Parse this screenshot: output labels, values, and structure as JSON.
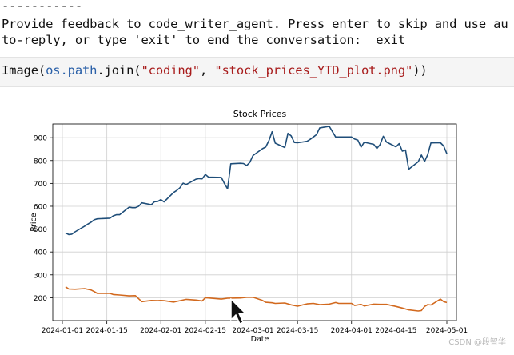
{
  "output": {
    "separator": "-----------",
    "prompt_line1": "Provide feedback to code_writer_agent. Press enter to skip and use au",
    "prompt_line2": "to-reply, or type 'exit' to end the conversation:  exit"
  },
  "cell": {
    "code_prefix": "Image(",
    "code_module": "os.path",
    "code_mid1": ".join(",
    "code_arg1": "\"coding\"",
    "code_sep": ", ",
    "code_arg2": "\"stock_prices_YTD_plot.png\"",
    "code_suffix": "))"
  },
  "watermark": "CSDN @段智华",
  "colors": {
    "series1": "#1f4e79",
    "series2": "#d2691e",
    "grid": "#cfcfcf"
  },
  "cursor_icon": "mouse-pointer-icon",
  "chart_data": {
    "type": "line",
    "title": "Stock Prices",
    "xlabel": "Date",
    "ylabel": "Price",
    "grid": true,
    "xlim": [
      "2024-01-01",
      "2024-05-01"
    ],
    "ylim": [
      100,
      960
    ],
    "x_ticks": [
      "2024-01-01",
      "2024-01-15",
      "2024-02-01",
      "2024-02-15",
      "2024-03-01",
      "2024-03-15",
      "2024-04-01",
      "2024-04-15",
      "2024-05-01"
    ],
    "y_ticks": [
      200,
      300,
      400,
      500,
      600,
      700,
      800,
      900
    ],
    "series": [
      {
        "color": "#1f4e79",
        "points": [
          [
            "2024-01-02",
            483
          ],
          [
            "2024-01-03",
            476
          ],
          [
            "2024-01-04",
            478
          ],
          [
            "2024-01-05",
            488
          ],
          [
            "2024-01-08",
            513
          ],
          [
            "2024-01-09",
            522
          ],
          [
            "2024-01-10",
            530
          ],
          [
            "2024-01-11",
            541
          ],
          [
            "2024-01-12",
            545
          ],
          [
            "2024-01-16",
            548
          ],
          [
            "2024-01-17",
            558
          ],
          [
            "2024-01-18",
            563
          ],
          [
            "2024-01-19",
            563
          ],
          [
            "2024-01-22",
            596
          ],
          [
            "2024-01-23",
            594
          ],
          [
            "2024-01-24",
            594
          ],
          [
            "2024-01-25",
            600
          ],
          [
            "2024-01-26",
            615
          ],
          [
            "2024-01-29",
            607
          ],
          [
            "2024-01-30",
            620
          ],
          [
            "2024-01-31",
            621
          ],
          [
            "2024-02-01",
            629
          ],
          [
            "2024-02-02",
            619
          ],
          [
            "2024-02-05",
            660
          ],
          [
            "2024-02-06",
            669
          ],
          [
            "2024-02-07",
            681
          ],
          [
            "2024-02-08",
            701
          ],
          [
            "2024-02-09",
            695
          ],
          [
            "2024-02-12",
            718
          ],
          [
            "2024-02-13",
            721
          ],
          [
            "2024-02-14",
            720
          ],
          [
            "2024-02-15",
            739
          ],
          [
            "2024-02-16",
            727
          ],
          [
            "2024-02-20",
            726
          ],
          [
            "2024-02-21",
            700
          ],
          [
            "2024-02-22",
            676
          ],
          [
            "2024-02-23",
            786
          ],
          [
            "2024-02-26",
            788
          ],
          [
            "2024-02-27",
            787
          ],
          [
            "2024-02-28",
            778
          ],
          [
            "2024-02-29",
            792
          ],
          [
            "2024-03-01",
            822
          ],
          [
            "2024-03-04",
            852
          ],
          [
            "2024-03-05",
            859
          ],
          [
            "2024-03-06",
            887
          ],
          [
            "2024-03-07",
            926
          ],
          [
            "2024-03-08",
            876
          ],
          [
            "2024-03-11",
            857
          ],
          [
            "2024-03-12",
            919
          ],
          [
            "2024-03-13",
            908
          ],
          [
            "2024-03-14",
            879
          ],
          [
            "2024-03-15",
            878
          ],
          [
            "2024-03-18",
            884
          ],
          [
            "2024-03-19",
            893
          ],
          [
            "2024-03-20",
            903
          ],
          [
            "2024-03-21",
            914
          ],
          [
            "2024-03-22",
            943
          ],
          [
            "2024-03-25",
            950
          ],
          [
            "2024-03-26",
            926
          ],
          [
            "2024-03-27",
            903
          ],
          [
            "2024-03-28",
            903
          ],
          [
            "2024-04-01",
            903
          ],
          [
            "2024-04-02",
            894
          ],
          [
            "2024-04-03",
            889
          ],
          [
            "2024-04-04",
            859
          ],
          [
            "2024-04-05",
            880
          ],
          [
            "2024-04-08",
            871
          ],
          [
            "2024-04-09",
            853
          ],
          [
            "2024-04-10",
            870
          ],
          [
            "2024-04-11",
            906
          ],
          [
            "2024-04-12",
            881
          ],
          [
            "2024-04-15",
            860
          ],
          [
            "2024-04-16",
            874
          ],
          [
            "2024-04-17",
            841
          ],
          [
            "2024-04-18",
            846
          ],
          [
            "2024-04-19",
            762
          ],
          [
            "2024-04-22",
            795
          ],
          [
            "2024-04-23",
            824
          ],
          [
            "2024-04-24",
            796
          ],
          [
            "2024-04-25",
            826
          ],
          [
            "2024-04-26",
            877
          ],
          [
            "2024-04-29",
            878
          ],
          [
            "2024-04-30",
            864
          ],
          [
            "2024-05-01",
            830
          ]
        ]
      },
      {
        "color": "#d2691e",
        "points": [
          [
            "2024-01-02",
            248
          ],
          [
            "2024-01-03",
            238
          ],
          [
            "2024-01-05",
            237
          ],
          [
            "2024-01-08",
            240
          ],
          [
            "2024-01-10",
            234
          ],
          [
            "2024-01-11",
            227
          ],
          [
            "2024-01-12",
            219
          ],
          [
            "2024-01-16",
            219
          ],
          [
            "2024-01-17",
            214
          ],
          [
            "2024-01-19",
            212
          ],
          [
            "2024-01-22",
            208
          ],
          [
            "2024-01-24",
            209
          ],
          [
            "2024-01-26",
            183
          ],
          [
            "2024-01-29",
            188
          ],
          [
            "2024-01-31",
            187
          ],
          [
            "2024-02-01",
            188
          ],
          [
            "2024-02-02",
            187
          ],
          [
            "2024-02-05",
            181
          ],
          [
            "2024-02-07",
            187
          ],
          [
            "2024-02-09",
            193
          ],
          [
            "2024-02-12",
            190
          ],
          [
            "2024-02-14",
            186
          ],
          [
            "2024-02-15",
            200
          ],
          [
            "2024-02-16",
            199
          ],
          [
            "2024-02-20",
            194
          ],
          [
            "2024-02-22",
            198
          ],
          [
            "2024-02-26",
            199
          ],
          [
            "2024-02-28",
            202
          ],
          [
            "2024-03-01",
            202
          ],
          [
            "2024-03-04",
            188
          ],
          [
            "2024-03-05",
            180
          ],
          [
            "2024-03-07",
            178
          ],
          [
            "2024-03-08",
            175
          ],
          [
            "2024-03-11",
            177
          ],
          [
            "2024-03-13",
            169
          ],
          [
            "2024-03-15",
            163
          ],
          [
            "2024-03-18",
            173
          ],
          [
            "2024-03-20",
            175
          ],
          [
            "2024-03-22",
            170
          ],
          [
            "2024-03-25",
            172
          ],
          [
            "2024-03-27",
            179
          ],
          [
            "2024-03-28",
            175
          ],
          [
            "2024-04-01",
            175
          ],
          [
            "2024-04-02",
            166
          ],
          [
            "2024-04-04",
            171
          ],
          [
            "2024-04-05",
            164
          ],
          [
            "2024-04-08",
            172
          ],
          [
            "2024-04-10",
            171
          ],
          [
            "2024-04-12",
            171
          ],
          [
            "2024-04-15",
            162
          ],
          [
            "2024-04-17",
            155
          ],
          [
            "2024-04-19",
            147
          ],
          [
            "2024-04-22",
            142
          ],
          [
            "2024-04-23",
            144
          ],
          [
            "2024-04-24",
            162
          ],
          [
            "2024-04-25",
            170
          ],
          [
            "2024-04-26",
            168
          ],
          [
            "2024-04-29",
            194
          ],
          [
            "2024-04-30",
            183
          ],
          [
            "2024-05-01",
            179
          ]
        ]
      }
    ]
  }
}
